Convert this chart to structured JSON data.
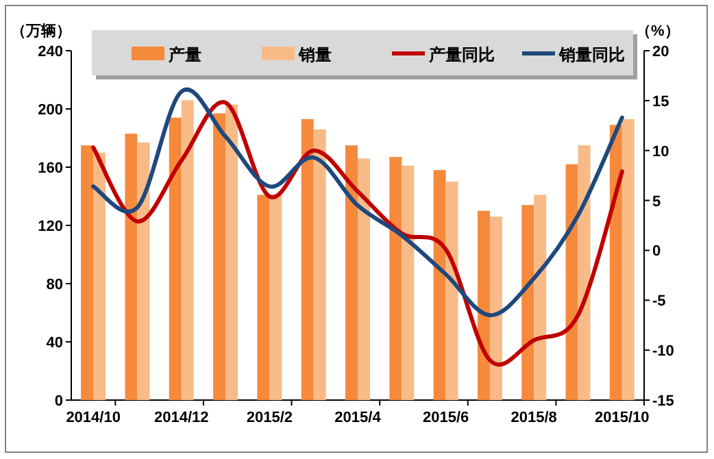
{
  "chart_data": {
    "type": "bar",
    "ylabel": "（万辆）",
    "y2label": "（%）",
    "categories": [
      "2014/10",
      null,
      "2014/12",
      null,
      "2015/2",
      null,
      "2015/4",
      null,
      "2015/6",
      null,
      "2015/8",
      null,
      "2015/10"
    ],
    "ylim": [
      0,
      240
    ],
    "yticks": [
      0,
      40,
      80,
      120,
      160,
      200,
      240
    ],
    "y2lim": [
      -15,
      20
    ],
    "y2ticks": [
      -15,
      -10,
      -5,
      0,
      5,
      10,
      15,
      20
    ],
    "legend": "top",
    "series": [
      {
        "name": "产量",
        "color": "#f58a3c",
        "values": [
          175,
          183,
          194,
          197,
          141,
          193,
          175,
          167,
          158,
          130,
          134,
          162,
          189
        ]
      },
      {
        "name": "销量",
        "color": "#f8bb88",
        "values": [
          170,
          177,
          206,
          203,
          141,
          186,
          166,
          161,
          150,
          126,
          141,
          175,
          193
        ]
      },
      {
        "name": "产量同比",
        "type": "line",
        "axis": "y2",
        "color": "#c00000",
        "values": [
          10.3,
          2.9,
          9.0,
          14.8,
          5.4,
          10.0,
          5.9,
          1.7,
          0.1,
          -11.0,
          -9.0,
          -6.5,
          7.9
        ]
      },
      {
        "name": "销量同比",
        "type": "line",
        "axis": "y2",
        "color": "#1f497d",
        "values": [
          6.4,
          4.3,
          15.9,
          11.4,
          6.4,
          9.3,
          4.5,
          1.5,
          -2.4,
          -6.5,
          -2.8,
          3.5,
          13.3
        ]
      }
    ]
  }
}
